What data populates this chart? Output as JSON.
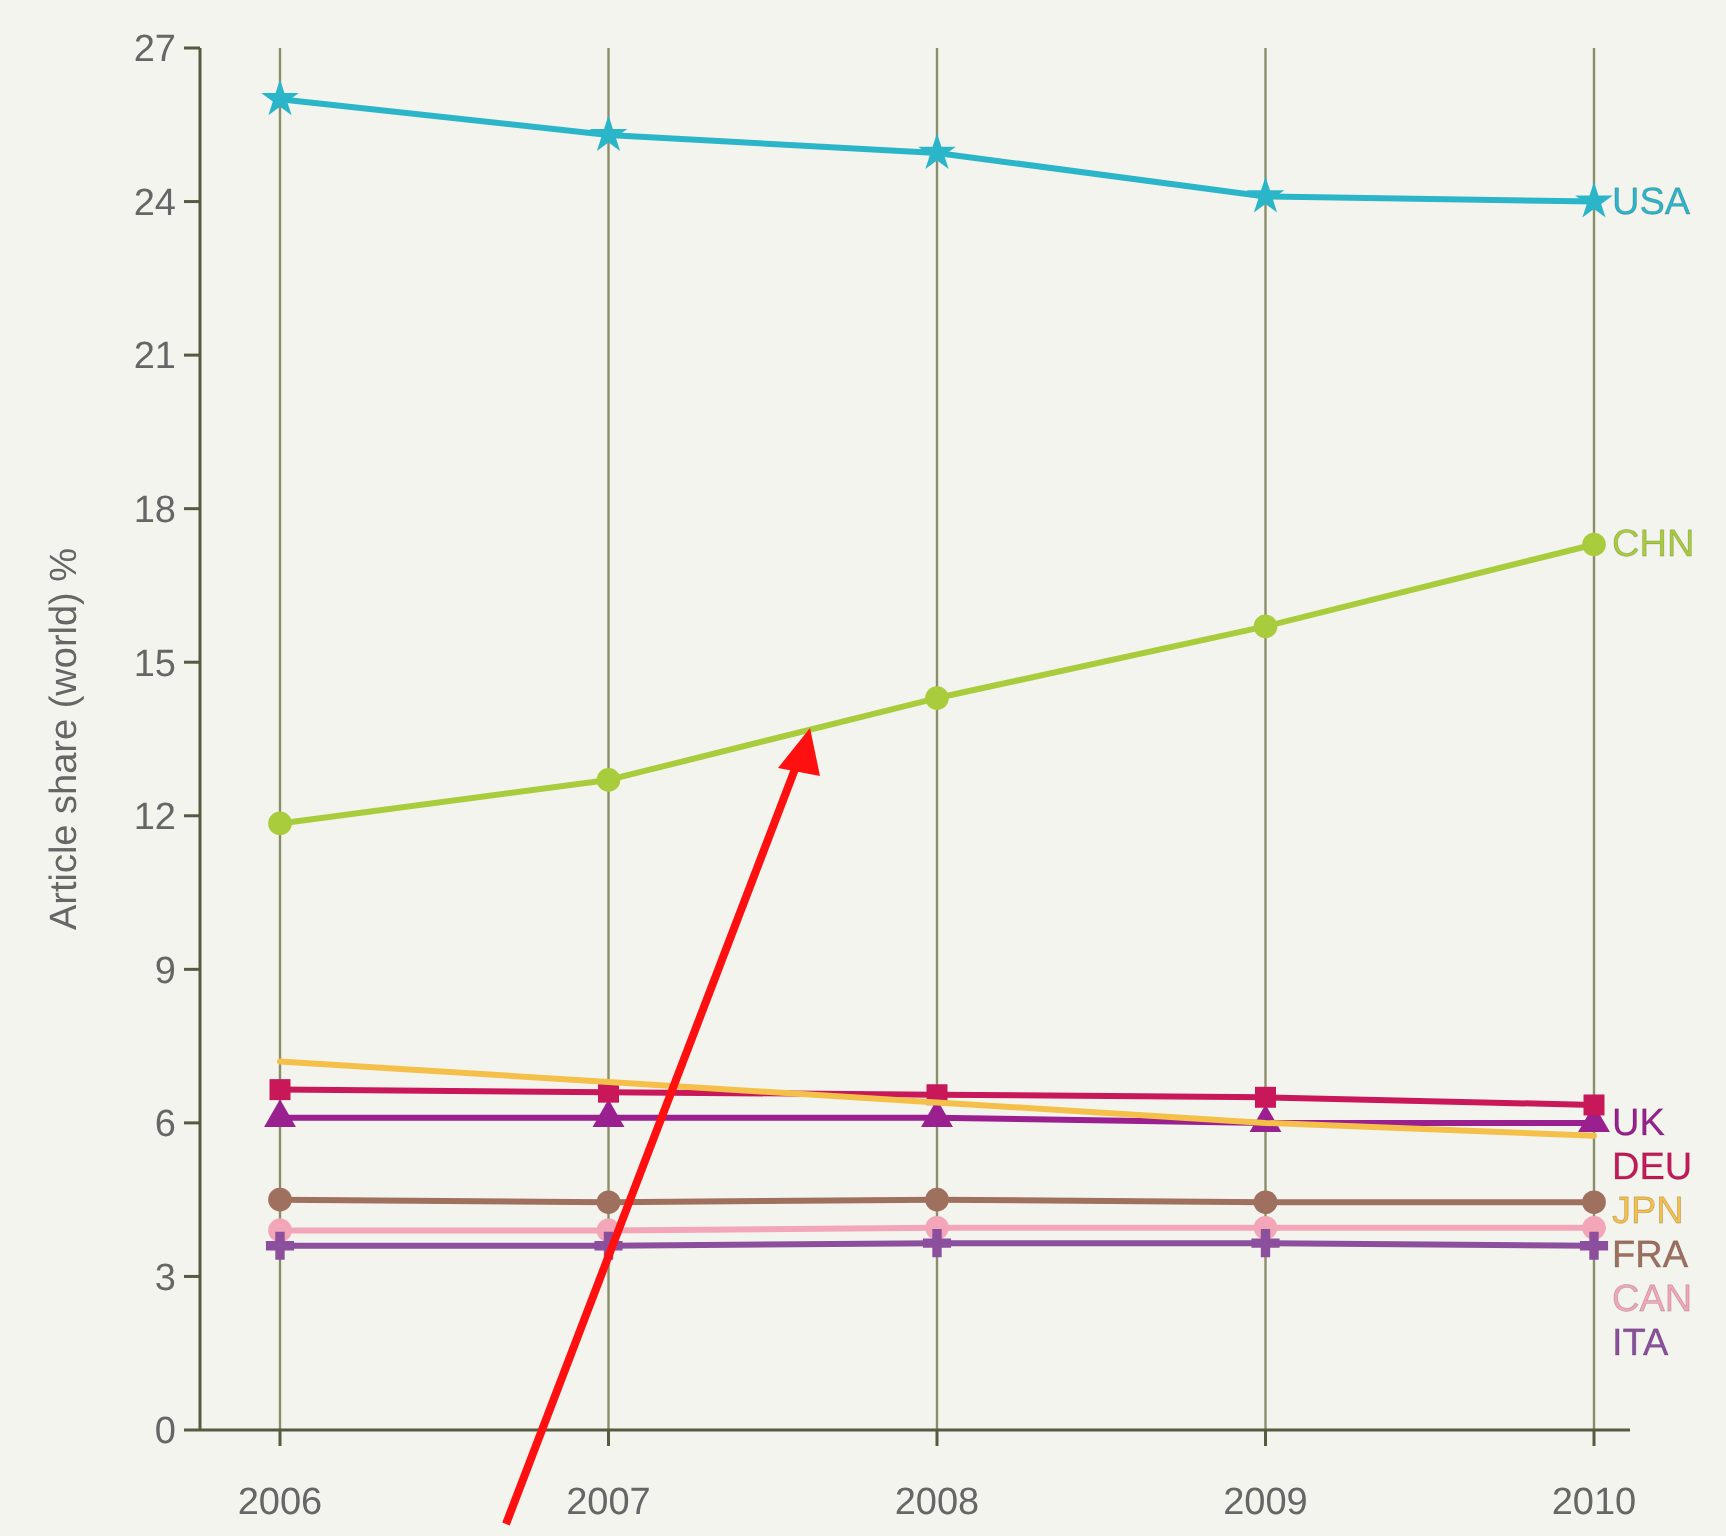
{
  "chart_data": {
    "type": "line",
    "ylabel": "Article share (world) %",
    "categories": [
      "2006",
      "2007",
      "2008",
      "2009",
      "2010"
    ],
    "ylim": [
      0,
      27
    ],
    "yticks": [
      0,
      3,
      6,
      9,
      12,
      15,
      18,
      21,
      24,
      27
    ],
    "grid": "x",
    "series": [
      {
        "name": "USA",
        "color": "#2bb5c9",
        "marker": "star",
        "values": [
          26.0,
          25.3,
          24.95,
          24.1,
          24.0
        ]
      },
      {
        "name": "CHN",
        "color": "#a8cc3c",
        "marker": "circle",
        "values": [
          11.85,
          12.7,
          14.3,
          15.7,
          17.3
        ]
      },
      {
        "name": "UK",
        "color": "#9a1f8f",
        "marker": "triangle",
        "values": [
          6.1,
          6.1,
          6.1,
          6.0,
          6.0
        ]
      },
      {
        "name": "DEU",
        "color": "#c8185a",
        "marker": "square",
        "values": [
          6.65,
          6.6,
          6.55,
          6.5,
          6.35
        ]
      },
      {
        "name": "JPN",
        "color": "#f5c04a",
        "marker": "none",
        "values": [
          7.2,
          6.8,
          6.4,
          6.0,
          5.75
        ]
      },
      {
        "name": "FRA",
        "color": "#a0705f",
        "marker": "circle",
        "values": [
          4.5,
          4.45,
          4.5,
          4.45,
          4.45
        ]
      },
      {
        "name": "CAN",
        "color": "#f2a6b8",
        "marker": "circle",
        "values": [
          3.9,
          3.9,
          3.95,
          3.95,
          3.95
        ]
      },
      {
        "name": "ITA",
        "color": "#8b4f9e",
        "marker": "cross",
        "values": [
          3.6,
          3.6,
          3.65,
          3.65,
          3.6
        ]
      }
    ]
  }
}
